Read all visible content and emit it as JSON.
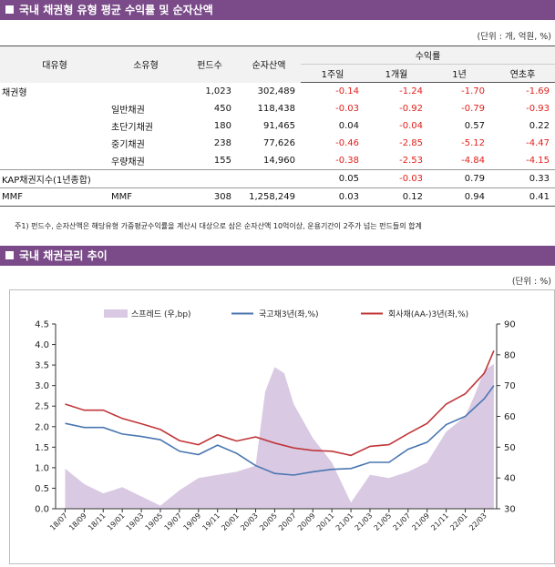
{
  "section1": {
    "title": "국내 채권형 유형 평균 수익률 및 순자산액",
    "unit": "(단위 : 개, 억원, %)"
  },
  "table": {
    "headers": {
      "major": "대유형",
      "minor": "소유형",
      "count": "펀드수",
      "net_assets": "순자산액",
      "returns": "수익률",
      "w1": "1주일",
      "m1": "1개월",
      "y1": "1년",
      "ytd": "연초후"
    },
    "rows": [
      {
        "major": "채권형",
        "minor": "",
        "count": "1,023",
        "net_assets": "302,489",
        "w1": "-0.14",
        "m1": "-1.24",
        "y1": "-1.70",
        "ytd": "-1.69"
      },
      {
        "major": "",
        "minor": "일반채권",
        "count": "450",
        "net_assets": "118,438",
        "w1": "-0.03",
        "m1": "-0.92",
        "y1": "-0.79",
        "ytd": "-0.93"
      },
      {
        "major": "",
        "minor": "초단기채권",
        "count": "180",
        "net_assets": "91,465",
        "w1": "0.04",
        "m1": "-0.04",
        "y1": "0.57",
        "ytd": "0.22"
      },
      {
        "major": "",
        "minor": "중기채권",
        "count": "238",
        "net_assets": "77,626",
        "w1": "-0.46",
        "m1": "-2.85",
        "y1": "-5.12",
        "ytd": "-4.47"
      },
      {
        "major": "",
        "minor": "우량채권",
        "count": "155",
        "net_assets": "14,960",
        "w1": "-0.38",
        "m1": "-2.53",
        "y1": "-4.84",
        "ytd": "-4.15"
      },
      {
        "major": "KAP채권지수(1년종합)",
        "minor": "",
        "count": "",
        "net_assets": "",
        "w1": "0.05",
        "m1": "-0.03",
        "y1": "0.79",
        "ytd": "0.33"
      },
      {
        "major": "MMF",
        "minor": "MMF",
        "count": "308",
        "net_assets": "1,258,249",
        "w1": "0.03",
        "m1": "0.12",
        "y1": "0.94",
        "ytd": "0.41"
      }
    ],
    "note": "주1) 펀드수, 순자산액은 해당유형 가중평균수익률을 계산시 대상으로 삼은 순자산액 10억이상, 운용기간이 2주가 넘는 펀드들의 합계",
    "negative_color": "#e0201b"
  },
  "section2": {
    "title": "국내 채권금리 추이",
    "unit": "(단위 : %)"
  },
  "chart_data": {
    "type": "line",
    "title": "",
    "legend": [
      "스프레드 (우,bp)",
      "국고채3년(좌,%)",
      "회사채(AA-)3년(좌,%)"
    ],
    "legend_position": "top",
    "x_ticks": [
      "18/07",
      "18/09",
      "18/11",
      "19/01",
      "19/03",
      "19/05",
      "19/07",
      "19/09",
      "19/11",
      "20/01",
      "20/03",
      "20/05",
      "20/07",
      "20/09",
      "20/11",
      "21/01",
      "21/03",
      "21/05",
      "21/07",
      "21/09",
      "21/11",
      "22/01",
      "22/03"
    ],
    "y_left": {
      "min": 0,
      "max": 4.5,
      "ticks": [
        "0.0",
        "0.5",
        "1.0",
        "1.5",
        "2.0",
        "2.5",
        "3.0",
        "3.5",
        "4.0",
        "4.5"
      ]
    },
    "y_right": {
      "min": 30,
      "max": 90,
      "ticks": [
        "30",
        "40",
        "50",
        "60",
        "70",
        "80",
        "90"
      ]
    },
    "grid": false,
    "series": [
      {
        "name": "스프레드 (우,bp)",
        "type": "area",
        "axis": "right",
        "color": "#d9c9e3",
        "points": [
          [
            "18/07",
            43
          ],
          [
            "18/09",
            38
          ],
          [
            "18/11",
            35
          ],
          [
            "19/01",
            37
          ],
          [
            "19/03",
            34
          ],
          [
            "19/05",
            31
          ],
          [
            "19/07",
            36
          ],
          [
            "19/09",
            40
          ],
          [
            "19/11",
            41
          ],
          [
            "20/01",
            42
          ],
          [
            "20/03",
            44
          ],
          [
            "20/04",
            68
          ],
          [
            "20/05",
            76
          ],
          [
            "20/06",
            74
          ],
          [
            "20/07",
            64
          ],
          [
            "20/09",
            53
          ],
          [
            "20/11",
            45
          ],
          [
            "21/01",
            32
          ],
          [
            "21/03",
            41
          ],
          [
            "21/05",
            40
          ],
          [
            "21/07",
            42
          ],
          [
            "21/09",
            45
          ],
          [
            "21/11",
            55
          ],
          [
            "22/01",
            60
          ],
          [
            "22/02",
            67
          ],
          [
            "22/03",
            75
          ],
          [
            "22/04",
            77
          ]
        ]
      },
      {
        "name": "국고채3년(좌,%)",
        "type": "line",
        "axis": "left",
        "color": "#4a76b0",
        "points": [
          [
            "18/07",
            2.08
          ],
          [
            "18/09",
            1.98
          ],
          [
            "18/11",
            1.98
          ],
          [
            "19/01",
            1.82
          ],
          [
            "19/03",
            1.76
          ],
          [
            "19/05",
            1.68
          ],
          [
            "19/07",
            1.4
          ],
          [
            "19/09",
            1.32
          ],
          [
            "19/11",
            1.55
          ],
          [
            "20/01",
            1.35
          ],
          [
            "20/03",
            1.05
          ],
          [
            "20/05",
            0.86
          ],
          [
            "20/07",
            0.82
          ],
          [
            "20/09",
            0.9
          ],
          [
            "20/11",
            0.96
          ],
          [
            "21/01",
            0.98
          ],
          [
            "21/03",
            1.13
          ],
          [
            "21/05",
            1.13
          ],
          [
            "21/07",
            1.45
          ],
          [
            "21/09",
            1.62
          ],
          [
            "21/11",
            2.05
          ],
          [
            "22/01",
            2.25
          ],
          [
            "22/03",
            2.68
          ],
          [
            "22/04",
            3.0
          ]
        ]
      },
      {
        "name": "회사채(AA-)3년(좌,%)",
        "type": "line",
        "axis": "left",
        "color": "#c0363a",
        "points": [
          [
            "18/07",
            2.55
          ],
          [
            "18/09",
            2.4
          ],
          [
            "18/11",
            2.4
          ],
          [
            "19/01",
            2.2
          ],
          [
            "19/03",
            2.07
          ],
          [
            "19/05",
            1.93
          ],
          [
            "19/07",
            1.66
          ],
          [
            "19/09",
            1.56
          ],
          [
            "19/11",
            1.8
          ],
          [
            "20/01",
            1.65
          ],
          [
            "20/03",
            1.75
          ],
          [
            "20/05",
            1.6
          ],
          [
            "20/07",
            1.48
          ],
          [
            "20/09",
            1.42
          ],
          [
            "20/11",
            1.4
          ],
          [
            "21/01",
            1.3
          ],
          [
            "21/03",
            1.52
          ],
          [
            "21/05",
            1.56
          ],
          [
            "21/07",
            1.83
          ],
          [
            "21/09",
            2.08
          ],
          [
            "21/11",
            2.55
          ],
          [
            "22/01",
            2.8
          ],
          [
            "22/03",
            3.3
          ],
          [
            "22/04",
            3.85
          ]
        ]
      }
    ]
  }
}
